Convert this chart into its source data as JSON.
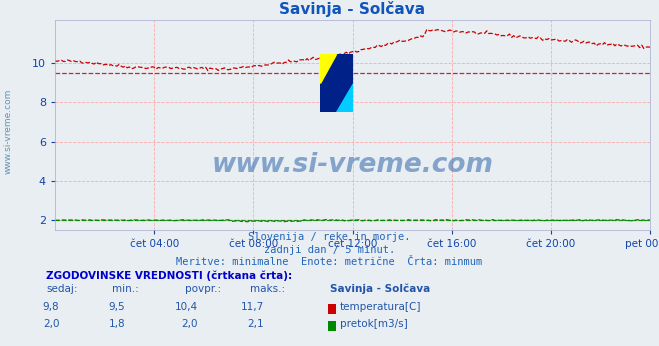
{
  "title": "Savinja - Solčava",
  "background_color": "#e8eef2",
  "plot_bg_color": "#e8eef2",
  "grid_color": "#ffaaaa",
  "ylim": [
    1.5,
    12.2
  ],
  "yticks": [
    2,
    4,
    6,
    8,
    10
  ],
  "tick_label_color": "#1144aa",
  "xtick_labels": [
    "čet 04:00",
    "čet 08:00",
    "čet 12:00",
    "čet 16:00",
    "čet 20:00",
    "pet 00:00"
  ],
  "xtick_positions": [
    4,
    8,
    12,
    16,
    20,
    24
  ],
  "xlim": [
    0,
    24
  ],
  "subtitle_lines": [
    "Slovenija / reke in morje.",
    "zadnji dan / 5 minut.",
    "Meritve: minimalne  Enote: metrične  Črta: minmum"
  ],
  "subtitle_color": "#2266bb",
  "watermark_text": "www.si-vreme.com",
  "watermark_color": "#3366aa",
  "temp_color": "#cc0000",
  "flow_color": "#008800",
  "temp_min_line": 9.5,
  "flow_min_line": 2.0,
  "temp_current": "9,8",
  "temp_min": "9,5",
  "temp_avg": "10,4",
  "temp_max": "11,7",
  "flow_current": "2,0",
  "flow_min": "1,8",
  "flow_avg": "2,0",
  "flow_max": "2,1",
  "table_header_color": "#0000cc",
  "table_text_color": "#2255aa",
  "left_label_text": "www.si-vreme.com",
  "left_label_color": "#5588aa",
  "title_color": "#1155bb"
}
